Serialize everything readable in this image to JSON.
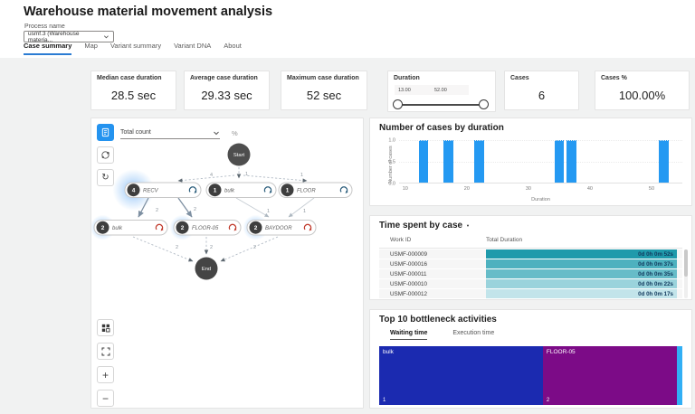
{
  "header": {
    "title": "Warehouse material movement analysis",
    "process_name_label": "Process name",
    "process_name_value": "usmf.3 (Warehouse materia...",
    "tabs": [
      {
        "label": "Case summary",
        "active": true
      },
      {
        "label": "Map",
        "active": false
      },
      {
        "label": "Variant summary",
        "active": false
      },
      {
        "label": "Variant DNA",
        "active": false
      },
      {
        "label": "About",
        "active": false
      }
    ]
  },
  "kpis": {
    "median": {
      "label": "Median case duration",
      "value": "28.5 sec"
    },
    "average": {
      "label": "Average case duration",
      "value": "29.33 sec"
    },
    "maximum": {
      "label": "Maximum case duration",
      "value": "52 sec"
    },
    "duration_filter": {
      "label": "Duration",
      "min": "13.00",
      "max": "52.00"
    },
    "cases": {
      "label": "Cases",
      "value": "6"
    },
    "cases_pct": {
      "label": "Cases %",
      "value": "100.00%"
    }
  },
  "process_map": {
    "metric_dropdown": "Total count",
    "percent_label": "%",
    "start_label": "Start",
    "end_label": "End",
    "nodes": [
      {
        "name": "RECV",
        "count": "4"
      },
      {
        "name": "bulk",
        "count": "1"
      },
      {
        "name": "FLOOR",
        "count": "1"
      },
      {
        "name": "bulk",
        "count": "2"
      },
      {
        "name": "FLOOR-05",
        "count": "2"
      },
      {
        "name": "BAYDOOR",
        "count": "2"
      }
    ],
    "edge_labels": {
      "start_recv": "4",
      "start_bulk": "1",
      "start_floor": "1",
      "recv_bulk2": "2",
      "recv_floor05": "2",
      "bulk_baydoor": "1",
      "floor_baydoor": "1",
      "bulk2_end": "2",
      "floor05_end": "2",
      "baydoor_end": "2"
    }
  },
  "chart_data": [
    {
      "type": "bar",
      "title": "Number of cases by duration",
      "xlabel": "Duration",
      "ylabel": "Number of cases",
      "x": [
        13,
        17,
        22,
        35,
        37,
        52
      ],
      "values": [
        1,
        1,
        1,
        1,
        1,
        1
      ],
      "xlim": [
        9,
        55
      ],
      "ylim": [
        0,
        1.0
      ],
      "x_ticks": [
        10,
        20,
        30,
        40,
        50
      ],
      "y_ticks": [
        "1.0",
        "0.5",
        "0.0"
      ],
      "bar_width": 1.5,
      "bar_color": "#2499f2",
      "grid": "horizontal-dotted",
      "legend": "none"
    },
    {
      "type": "table",
      "title": "Time spent by case",
      "columns": [
        "Work ID",
        "Total Duration"
      ],
      "sort": "Total Duration descending",
      "rows": [
        {
          "work_id": "USMF-000009",
          "duration": "0d 0h 0m 52s",
          "bar_color": "#1f9aab"
        },
        {
          "work_id": "USMF-000016",
          "duration": "0d 0h 0m 37s",
          "bar_color": "#4db1bf"
        },
        {
          "work_id": "USMF-000011",
          "duration": "0d 0h 0m 35s",
          "bar_color": "#66bcc8"
        },
        {
          "work_id": "USMF-000010",
          "duration": "0d 0h 0m 22s",
          "bar_color": "#9ad3dc"
        },
        {
          "work_id": "USMF-000012",
          "duration": "0d 0h 0m 17s",
          "bar_color": "#c2e4ea"
        }
      ]
    },
    {
      "type": "treemap",
      "title": "Top 10 bottleneck activities",
      "tabs": [
        "Waiting time",
        "Execution time"
      ],
      "active_tab": "Waiting time",
      "segments": [
        {
          "label": "bulk",
          "rank": "1",
          "color": "#1b2ab0",
          "width_pct": 54
        },
        {
          "label": "FLOOR-05",
          "rank": "2",
          "color": "#7c0b87",
          "width_pct": 44.3
        },
        {
          "label": "",
          "rank": "",
          "color": "#31aff5",
          "width_pct": 1.7
        }
      ]
    }
  ],
  "icons": {
    "chevron": "∨",
    "refresh": "↻",
    "plus": "+",
    "minus": "−",
    "sort_desc": "▼"
  },
  "colors": {
    "accent_blue": "#2b7cd3",
    "toolbar_blue": "#2493ef",
    "glow_blue": "#2f8ef0",
    "badge_gray": "#3e3e3e"
  }
}
